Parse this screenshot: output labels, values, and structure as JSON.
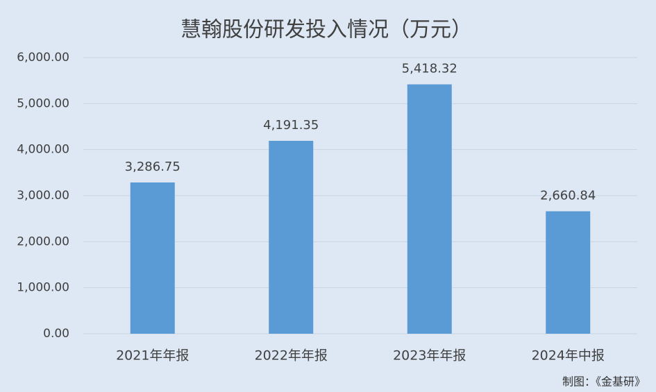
{
  "chart_data": {
    "type": "bar",
    "title": "慧翰股份研发投入情况（万元）",
    "categories": [
      "2021年年报",
      "2022年年报",
      "2023年年报",
      "2024年中报"
    ],
    "values": [
      3286.75,
      4191.35,
      5418.32,
      2660.84
    ],
    "value_labels": [
      "3,286.75",
      "4,191.35",
      "5,418.32",
      "2,660.84"
    ],
    "color": "#5b9bd5",
    "ylim": [
      0,
      6000
    ],
    "yticks": [
      {
        "value": 0,
        "label": "0.00"
      },
      {
        "value": 1000,
        "label": "1,000.00"
      },
      {
        "value": 2000,
        "label": "2,000.00"
      },
      {
        "value": 3000,
        "label": "3,000.00"
      },
      {
        "value": 4000,
        "label": "4,000.00"
      },
      {
        "value": 5000,
        "label": "5,000.00"
      },
      {
        "value": 6000,
        "label": "6,000.00"
      }
    ],
    "grid": true,
    "note": "制图：《金基研》"
  }
}
